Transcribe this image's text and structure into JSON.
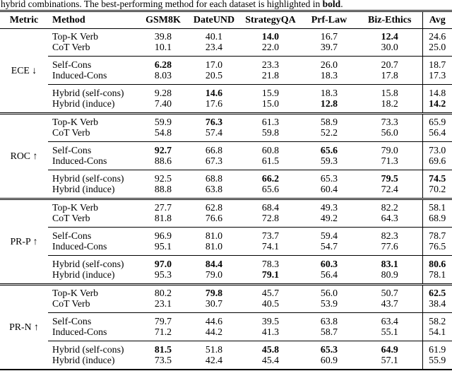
{
  "caption": {
    "prefix": "hybrid combinations. The best-performing method for each dataset is highlighted in ",
    "bold_word": "bold",
    "suffix": "."
  },
  "table": {
    "columns": [
      "Metric",
      "Method",
      "GSM8K",
      "DateUND",
      "StrategyQA",
      "Prf-Law",
      "Biz-Ethics",
      "Avg"
    ],
    "groups": [
      {
        "metric": "ECE ↓",
        "subgroups": [
          {
            "rows": [
              {
                "method": "Top-K Verb",
                "values": [
                  "39.8",
                  "40.1",
                  "14.0",
                  "16.7",
                  "12.4",
                  "24.6"
                ],
                "bold": [
                  2,
                  4
                ]
              },
              {
                "method": "CoT Verb",
                "values": [
                  "10.1",
                  "23.4",
                  "22.0",
                  "39.7",
                  "30.0",
                  "25.0"
                ],
                "bold": []
              }
            ]
          },
          {
            "rows": [
              {
                "method": "Self-Cons",
                "values": [
                  "6.28",
                  "17.0",
                  "23.3",
                  "26.0",
                  "20.7",
                  "18.7"
                ],
                "bold": [
                  0
                ]
              },
              {
                "method": "Induced-Cons",
                "values": [
                  "8.03",
                  "20.5",
                  "21.8",
                  "18.3",
                  "17.8",
                  "17.3"
                ],
                "bold": []
              }
            ]
          },
          {
            "rows": [
              {
                "method": "Hybrid (self-cons)",
                "values": [
                  "9.28",
                  "14.6",
                  "15.9",
                  "18.3",
                  "15.8",
                  "14.8"
                ],
                "bold": [
                  1
                ]
              },
              {
                "method": "Hybrid (induce)",
                "values": [
                  "7.40",
                  "17.6",
                  "15.0",
                  "12.8",
                  "18.2",
                  "14.2"
                ],
                "bold": [
                  3,
                  5
                ]
              }
            ]
          }
        ]
      },
      {
        "metric": "ROC ↑",
        "subgroups": [
          {
            "rows": [
              {
                "method": "Top-K Verb",
                "values": [
                  "59.9",
                  "76.3",
                  "61.3",
                  "58.9",
                  "73.3",
                  "65.9"
                ],
                "bold": [
                  1
                ]
              },
              {
                "method": "CoT Verb",
                "values": [
                  "54.8",
                  "57.4",
                  "59.8",
                  "52.2",
                  "56.0",
                  "56.4"
                ],
                "bold": []
              }
            ]
          },
          {
            "rows": [
              {
                "method": "Self-Cons",
                "values": [
                  "92.7",
                  "66.8",
                  "60.8",
                  "65.6",
                  "79.0",
                  "73.0"
                ],
                "bold": [
                  0,
                  3
                ]
              },
              {
                "method": "Induced-Cons",
                "values": [
                  "88.6",
                  "67.3",
                  "61.5",
                  "59.3",
                  "71.3",
                  "69.6"
                ],
                "bold": []
              }
            ]
          },
          {
            "rows": [
              {
                "method": "Hybrid (self-cons)",
                "values": [
                  "92.5",
                  "68.8",
                  "66.2",
                  "65.3",
                  "79.5",
                  "74.5"
                ],
                "bold": [
                  2,
                  4,
                  5
                ]
              },
              {
                "method": "Hybrid (induce)",
                "values": [
                  "88.8",
                  "63.8",
                  "65.6",
                  "60.4",
                  "72.4",
                  "70.2"
                ],
                "bold": []
              }
            ]
          }
        ]
      },
      {
        "metric": "PR-P ↑",
        "subgroups": [
          {
            "rows": [
              {
                "method": "Top-K Verb",
                "values": [
                  "27.7",
                  "62.8",
                  "68.4",
                  "49.3",
                  "82.2",
                  "58.1"
                ],
                "bold": []
              },
              {
                "method": "CoT Verb",
                "values": [
                  "81.8",
                  "76.6",
                  "72.8",
                  "49.2",
                  "64.3",
                  "68.9"
                ],
                "bold": []
              }
            ]
          },
          {
            "rows": [
              {
                "method": "Self-Cons",
                "values": [
                  "96.9",
                  "81.0",
                  "73.7",
                  "59.4",
                  "82.3",
                  "78.7"
                ],
                "bold": []
              },
              {
                "method": "Induced-Cons",
                "values": [
                  "95.1",
                  "81.0",
                  "74.1",
                  "54.7",
                  "77.6",
                  "76.5"
                ],
                "bold": []
              }
            ]
          },
          {
            "rows": [
              {
                "method": "Hybrid (self-cons)",
                "values": [
                  "97.0",
                  "84.4",
                  "78.3",
                  "60.3",
                  "83.1",
                  "80.6"
                ],
                "bold": [
                  0,
                  1,
                  3,
                  4,
                  5
                ]
              },
              {
                "method": "Hybrid (induce)",
                "values": [
                  "95.3",
                  "79.0",
                  "79.1",
                  "56.4",
                  "80.9",
                  "78.1"
                ],
                "bold": [
                  2
                ]
              }
            ]
          }
        ]
      },
      {
        "metric": "PR-N ↑",
        "subgroups": [
          {
            "rows": [
              {
                "method": "Top-K Verb",
                "values": [
                  "80.2",
                  "79.8",
                  "45.7",
                  "56.0",
                  "50.7",
                  "62.5"
                ],
                "bold": [
                  1,
                  5
                ]
              },
              {
                "method": "CoT Verb",
                "values": [
                  "23.1",
                  "30.7",
                  "40.5",
                  "53.9",
                  "43.7",
                  "38.4"
                ],
                "bold": []
              }
            ]
          },
          {
            "rows": [
              {
                "method": "Self-Cons",
                "values": [
                  "79.7",
                  "44.6",
                  "39.5",
                  "63.8",
                  "63.4",
                  "58.2"
                ],
                "bold": []
              },
              {
                "method": "Induced-Cons",
                "values": [
                  "71.2",
                  "44.2",
                  "41.3",
                  "58.7",
                  "55.1",
                  "54.1"
                ],
                "bold": []
              }
            ]
          },
          {
            "rows": [
              {
                "method": "Hybrid (self-cons)",
                "values": [
                  "81.5",
                  "51.8",
                  "45.8",
                  "65.3",
                  "64.9",
                  "61.9"
                ],
                "bold": [
                  0,
                  2,
                  3,
                  4
                ]
              },
              {
                "method": "Hybrid (induce)",
                "values": [
                  "73.5",
                  "42.4",
                  "45.4",
                  "60.9",
                  "57.1",
                  "55.9"
                ],
                "bold": []
              }
            ]
          }
        ]
      }
    ]
  }
}
